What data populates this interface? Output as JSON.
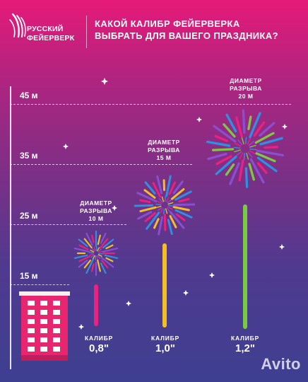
{
  "brand": {
    "line1": "РУССКИЙ",
    "line2": "ФЕЙЕРВЕРК"
  },
  "headline": {
    "line1": "КАКОЙ КАЛИБР ФЕЙЕРВЕРКА",
    "line2": "ВЫБРАТЬ ДЛЯ ВАШЕГО ПРАЗДНИКА?"
  },
  "height_scale": [
    "45 м",
    "35 м",
    "25 м",
    "15 м"
  ],
  "fireworks": [
    {
      "caliber_caption": "КАЛИБР",
      "caliber": "0,8\"",
      "diameter": {
        "line1": "ДИАМЕТР",
        "line2": "РАЗРЫВА",
        "line3": "10 М"
      },
      "burst_height_m": 25,
      "burst_diameter_m": 10,
      "colors": [
        "#e8227e",
        "#3a8bd8",
        "#f0c025",
        "#8a4fd0"
      ]
    },
    {
      "caliber_caption": "КАЛИБР",
      "caliber": "1,0\"",
      "diameter": {
        "line1": "ДИАМЕТР",
        "line2": "РАЗРЫВА",
        "line3": "15 М"
      },
      "burst_height_m": 35,
      "burst_diameter_m": 15,
      "colors": [
        "#f0c025",
        "#2f8fe0",
        "#e8227e",
        "#8a4fd0"
      ]
    },
    {
      "caliber_caption": "КАЛИБР",
      "caliber": "1,2\"",
      "diameter": {
        "line1": "ДИАМЕТР",
        "line2": "РАЗРЫВА",
        "line3": "20 М"
      },
      "burst_height_m": 45,
      "burst_diameter_m": 20,
      "colors": [
        "#7ac943",
        "#2f8fe0",
        "#e8227e",
        "#8a4fd0"
      ]
    }
  ],
  "watermark": "Avito",
  "colors": {
    "building": "#e8256f",
    "window": "#ffffff",
    "background_top": "#e61a78",
    "background_bottom": "#3e3f91"
  }
}
